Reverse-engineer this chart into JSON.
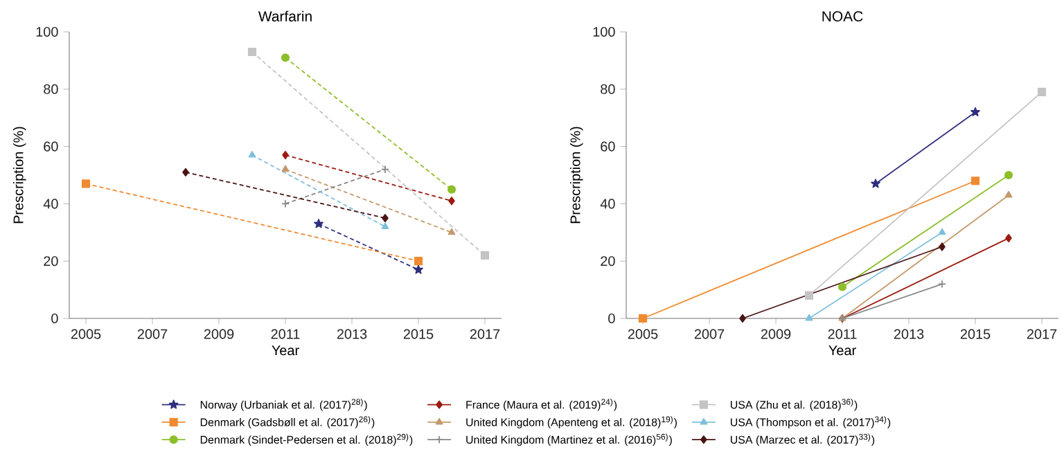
{
  "chart_data": [
    {
      "type": "line",
      "title": "Warfarin",
      "xlabel": "Year",
      "ylabel": "Prescription (%)",
      "xlim": [
        2004.5,
        2017.5
      ],
      "ylim": [
        0,
        100
      ],
      "xticks": [
        2005,
        2007,
        2009,
        2011,
        2013,
        2015,
        2017
      ],
      "yticks": [
        0,
        20,
        40,
        60,
        80,
        100
      ],
      "line_style": "dashed",
      "legend": "bottom",
      "grid": false,
      "series": [
        {
          "name": "Norway (Urbaniak et al. (2017)$^{28)}$)",
          "color": "#2e2e7e",
          "marker": "star",
          "x": [
            2012,
            2015
          ],
          "values": [
            33,
            17
          ]
        },
        {
          "name": "Denmark (Gadsbøll et al. (2017)$^{26)}$)",
          "color": "#f08a30",
          "marker": "square",
          "x": [
            2005,
            2015
          ],
          "values": [
            47,
            20
          ]
        },
        {
          "name": "Denmark (Sindet-Pedersen et al. (2018)$^{29)}$)",
          "color": "#8cbf2a",
          "marker": "circle",
          "x": [
            2011,
            2016
          ],
          "values": [
            91,
            45
          ]
        },
        {
          "name": "France (Maura et al. (2019)$^{24)}$)",
          "color": "#9b1b10",
          "marker": "diamond",
          "x": [
            2011,
            2016
          ],
          "values": [
            57,
            41
          ]
        },
        {
          "name": "United Kingdom (Apenteng et al. (2018)$^{19)}$)",
          "color": "#c49a6c",
          "marker": "triangle",
          "x": [
            2011,
            2016
          ],
          "values": [
            52,
            30
          ]
        },
        {
          "name": "United Kingdom (Martinez et al. (2016)$^{56)}$)",
          "color": "#888888",
          "marker": "cross",
          "x": [
            2011,
            2014
          ],
          "values": [
            40,
            52
          ]
        },
        {
          "name": "USA (Zhu et al. (2018)$^{36)}$)",
          "color": "#c4c4c4",
          "marker": "square",
          "x": [
            2010,
            2017
          ],
          "values": [
            93,
            22
          ]
        },
        {
          "name": "USA (Thompson et al. (2017)$^{34)}$)",
          "color": "#7fbfdc",
          "marker": "triangle",
          "x": [
            2010,
            2014
          ],
          "values": [
            57,
            32
          ]
        },
        {
          "name": "USA (Marzec et al. (2017)$^{33)}$)",
          "color": "#4a1414",
          "marker": "diamond",
          "x": [
            2008,
            2014
          ],
          "values": [
            51,
            35
          ]
        }
      ]
    },
    {
      "type": "line",
      "title": "NOAC",
      "xlabel": "Year",
      "ylabel": "Prescription (%)",
      "xlim": [
        2004.5,
        2017.5
      ],
      "ylim": [
        0,
        100
      ],
      "xticks": [
        2005,
        2007,
        2009,
        2011,
        2013,
        2015,
        2017
      ],
      "yticks": [
        0,
        20,
        40,
        60,
        80,
        100
      ],
      "line_style": "solid",
      "grid": false,
      "series": [
        {
          "color": "#2e2e7e",
          "marker": "star",
          "x": [
            2012,
            2015
          ],
          "values": [
            47,
            72
          ]
        },
        {
          "color": "#f08a30",
          "marker": "square",
          "x": [
            2005,
            2015
          ],
          "values": [
            0,
            48
          ]
        },
        {
          "color": "#8cbf2a",
          "marker": "circle",
          "x": [
            2011,
            2016
          ],
          "values": [
            11,
            50
          ]
        },
        {
          "color": "#9b1b10",
          "marker": "diamond",
          "x": [
            2011,
            2016
          ],
          "values": [
            0,
            28
          ]
        },
        {
          "color": "#c49a6c",
          "marker": "triangle",
          "x": [
            2011,
            2016
          ],
          "values": [
            0,
            43
          ]
        },
        {
          "color": "#888888",
          "marker": "cross",
          "x": [
            2011,
            2014
          ],
          "values": [
            0,
            12
          ]
        },
        {
          "color": "#c4c4c4",
          "marker": "square",
          "x": [
            2010,
            2017
          ],
          "values": [
            8,
            79
          ]
        },
        {
          "color": "#7fbfdc",
          "marker": "triangle",
          "x": [
            2010,
            2014
          ],
          "values": [
            0,
            30
          ]
        },
        {
          "color": "#4a1414",
          "marker": "diamond",
          "x": [
            2008,
            2014
          ],
          "values": [
            0,
            25
          ]
        }
      ]
    }
  ]
}
